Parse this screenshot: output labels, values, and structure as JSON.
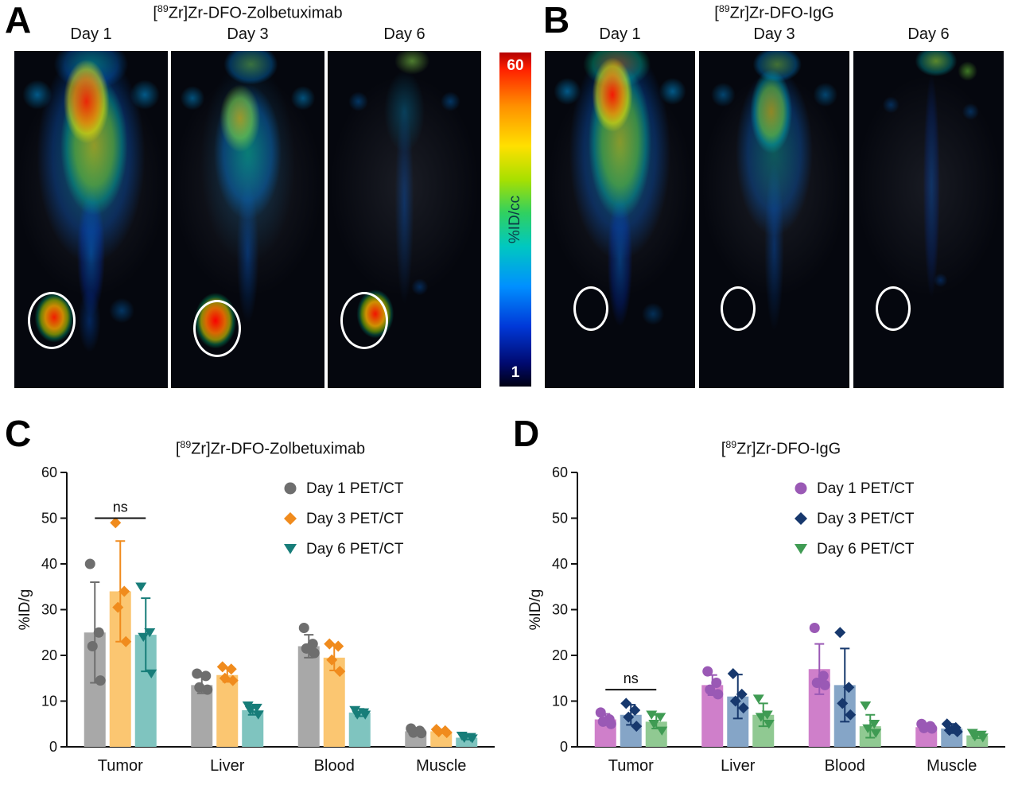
{
  "figure": {
    "panel_a": {
      "label": "A",
      "title": "[89Zr]Zr-DFO-Zolbetuximab",
      "title_parts": {
        "pre": "[",
        "sup": "89",
        "post": "Zr]Zr-DFO-Zolbetuximab"
      },
      "days": [
        "Day 1",
        "Day 3",
        "Day 6"
      ],
      "tumor_circled": true
    },
    "panel_b": {
      "label": "B",
      "title": "[89Zr]Zr-DFO-IgG",
      "title_parts": {
        "pre": "[",
        "sup": "89",
        "post": "Zr]Zr-DFO-IgG"
      },
      "days": [
        "Day 1",
        "Day 3",
        "Day 6"
      ],
      "tumor_circled": true
    },
    "colorbar": {
      "top_label": "60",
      "bottom_label": "1",
      "axis_label": "%ID/cc"
    },
    "panel_c": {
      "label": "C"
    },
    "panel_d": {
      "label": "D"
    }
  },
  "chart_data": [
    {
      "type": "bar",
      "panel": "C",
      "title": "[89Zr]Zr-DFO-Zolbetuximab",
      "title_parts": {
        "pre": "[",
        "sup": "89",
        "post": "Zr]Zr-DFO-Zolbetuximab"
      },
      "ylabel": "%ID/g",
      "ylim": [
        0,
        60
      ],
      "yticks": [
        0,
        10,
        20,
        30,
        40,
        50,
        60
      ],
      "categories": [
        "Tumor",
        "Liver",
        "Blood",
        "Muscle"
      ],
      "legend_position": "top-right",
      "annotation": {
        "text": "ns",
        "category": "Tumor",
        "y": 50
      },
      "series": [
        {
          "name": "Day 1 PET/CT",
          "marker": "circle",
          "bar_color": "#a8a8a8",
          "marker_color": "#6e6e6e",
          "values": [
            25,
            13.5,
            22,
            3.4
          ],
          "errors": [
            11,
            1.8,
            2.5,
            0.5
          ],
          "points": [
            [
              40,
              25,
              22,
              14.5
            ],
            [
              16,
              15.5,
              13,
              12.5
            ],
            [
              26,
              22.5,
              21.5,
              20.5
            ],
            [
              4,
              3.5,
              3.1,
              3
            ]
          ]
        },
        {
          "name": "Day 3 PET/CT",
          "marker": "diamond",
          "bar_color": "#fbc671",
          "marker_color": "#f08b1d",
          "values": [
            34,
            15.7,
            19.5,
            3.4
          ],
          "errors": [
            11,
            1.5,
            2.8,
            0.4
          ],
          "points": [
            [
              49,
              34,
              30.5,
              23
            ],
            [
              17.5,
              17,
              15,
              14.5
            ],
            [
              22.5,
              22,
              19,
              16.5
            ],
            [
              3.8,
              3.5,
              3.3,
              3.1
            ]
          ]
        },
        {
          "name": "Day 6 PET/CT",
          "marker": "triangle-down",
          "bar_color": "#7fc4bf",
          "marker_color": "#177d79",
          "values": [
            24.5,
            8,
            7.5,
            2
          ],
          "errors": [
            8,
            1,
            0.8,
            0.4
          ],
          "points": [
            [
              35,
              25,
              24,
              16
            ],
            [
              9,
              8.5,
              8,
              7
            ],
            [
              8,
              7.5,
              7,
              7
            ],
            [
              2.4,
              2.1,
              1.9,
              1.8
            ]
          ]
        }
      ]
    },
    {
      "type": "bar",
      "panel": "D",
      "title": "[89Zr]Zr-DFO-IgG",
      "title_parts": {
        "pre": "[",
        "sup": "89",
        "post": "Zr]Zr-DFO-IgG"
      },
      "ylabel": "%ID/g",
      "ylim": [
        0,
        60
      ],
      "yticks": [
        0,
        10,
        20,
        30,
        40,
        50,
        60
      ],
      "categories": [
        "Tumor",
        "Liver",
        "Blood",
        "Muscle"
      ],
      "legend_position": "top-right",
      "annotation": {
        "text": "ns",
        "category": "Tumor",
        "y": 12.5
      },
      "series": [
        {
          "name": "Day 1 PET/CT",
          "marker": "circle",
          "bar_color": "#cf7fca",
          "marker_color": "#9a59b5",
          "values": [
            6,
            13.5,
            17,
            4.3
          ],
          "errors": [
            1.2,
            2.2,
            5.5,
            0.6
          ],
          "points": [
            [
              7.5,
              6,
              5.5,
              5
            ],
            [
              16.5,
              14,
              12.5,
              11.5
            ],
            [
              26,
              15.5,
              14,
              13.5
            ],
            [
              5,
              4.5,
              4.1,
              4
            ]
          ]
        },
        {
          "name": "Day 3 PET/CT",
          "marker": "diamond",
          "bar_color": "#85a5c7",
          "marker_color": "#17386d",
          "values": [
            7,
            11,
            13.5,
            4
          ],
          "errors": [
            2.2,
            4.8,
            8,
            1
          ],
          "points": [
            [
              9.5,
              8,
              6.5,
              4.5
            ],
            [
              16,
              11.5,
              10,
              8.5
            ],
            [
              25,
              13,
              9.5,
              7
            ],
            [
              5,
              4.2,
              3.6,
              3.3
            ]
          ]
        },
        {
          "name": "Day 6 PET/CT",
          "marker": "triangle-down",
          "bar_color": "#90c992",
          "marker_color": "#3f9b53",
          "values": [
            5.5,
            7,
            4.5,
            2.5
          ],
          "errors": [
            1.5,
            2.5,
            2.5,
            0.6
          ],
          "points": [
            [
              7,
              6.5,
              5,
              3.5
            ],
            [
              10.5,
              7,
              6.5,
              5
            ],
            [
              9,
              5,
              4,
              3
            ],
            [
              3,
              2.6,
              2.2,
              2
            ]
          ]
        }
      ]
    }
  ]
}
